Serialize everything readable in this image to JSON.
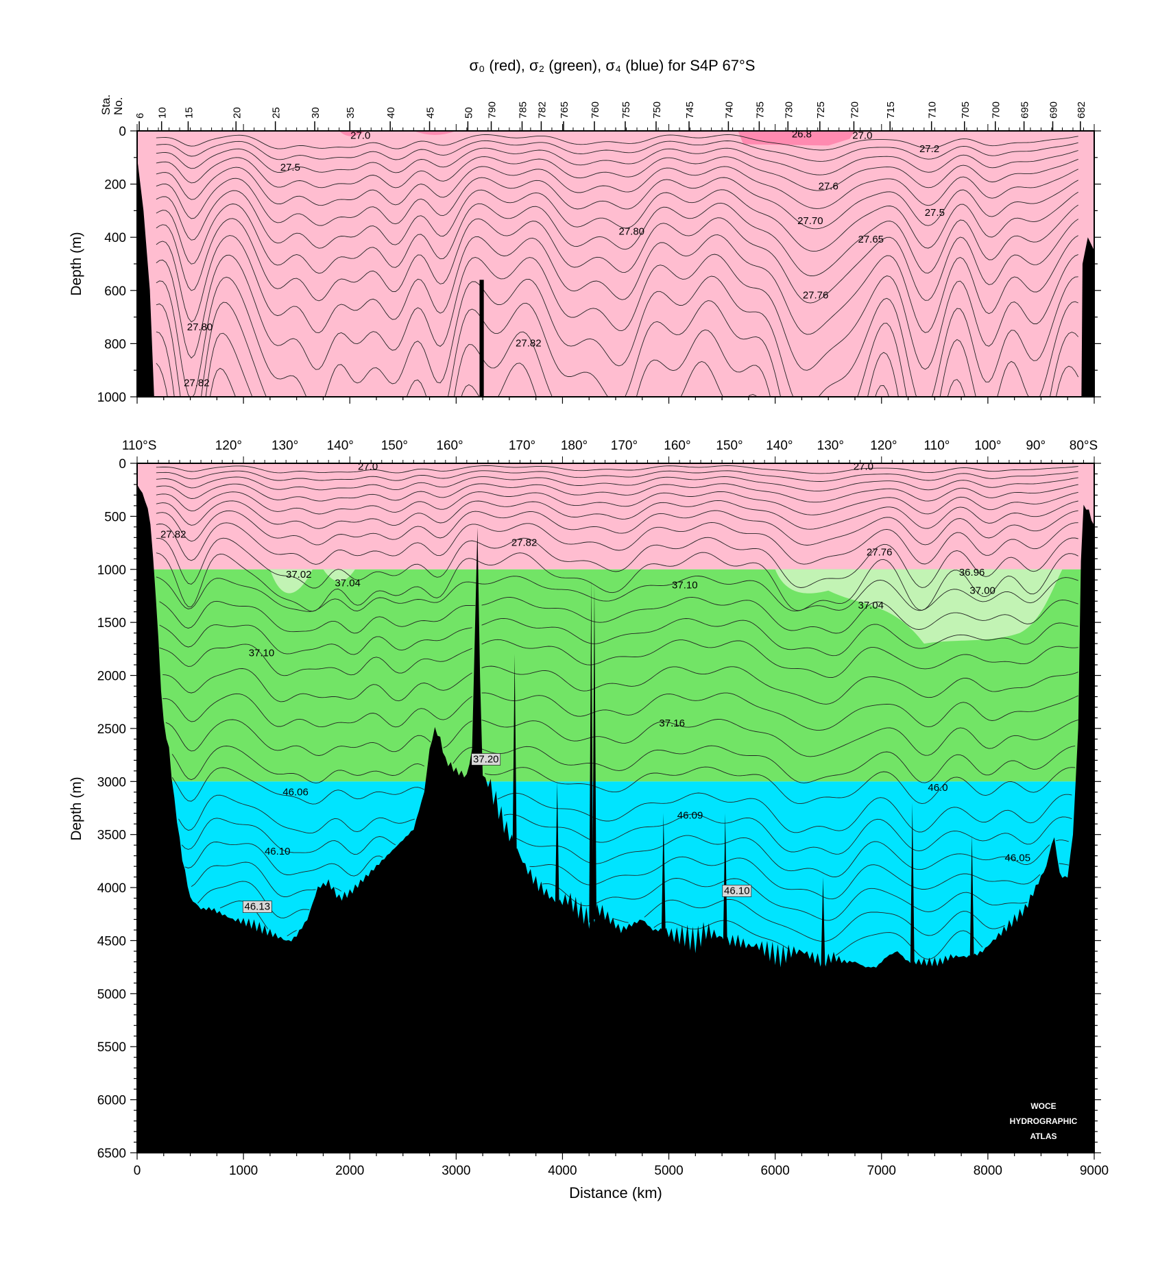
{
  "chart_data": [
    {
      "id": "upper",
      "type": "heatmap",
      "title": "σ₀ (red), σ₂ (green), σ₄ (blue) for S4P 67°S",
      "ylabel": "Depth (m)",
      "xlim": [
        0,
        9000
      ],
      "ylim": [
        0,
        1000
      ],
      "y_ticks": [
        0,
        200,
        400,
        600,
        800,
        1000
      ],
      "station_axis_label_line1": "Sta.",
      "station_axis_label_line2": "No.",
      "stations": [
        {
          "label": "6",
          "x": 20
        },
        {
          "label": "10",
          "x": 230
        },
        {
          "label": "15",
          "x": 480
        },
        {
          "label": "20",
          "x": 930
        },
        {
          "label": "25",
          "x": 1300
        },
        {
          "label": "30",
          "x": 1670
        },
        {
          "label": "35",
          "x": 2000
        },
        {
          "label": "40",
          "x": 2380
        },
        {
          "label": "45",
          "x": 2750
        },
        {
          "label": "50",
          "x": 3110
        },
        {
          "label": "790",
          "x": 3330
        },
        {
          "label": "785",
          "x": 3620
        },
        {
          "label": "782",
          "x": 3800
        },
        {
          "label": "765",
          "x": 4010
        },
        {
          "label": "760",
          "x": 4300
        },
        {
          "label": "755",
          "x": 4590
        },
        {
          "label": "750",
          "x": 4880
        },
        {
          "label": "745",
          "x": 5190
        },
        {
          "label": "740",
          "x": 5560
        },
        {
          "label": "735",
          "x": 5850
        },
        {
          "label": "730",
          "x": 6120
        },
        {
          "label": "725",
          "x": 6420
        },
        {
          "label": "720",
          "x": 6740
        },
        {
          "label": "715",
          "x": 7080
        },
        {
          "label": "710",
          "x": 7470
        },
        {
          "label": "705",
          "x": 7780
        },
        {
          "label": "700",
          "x": 8070
        },
        {
          "label": "695",
          "x": 8340
        },
        {
          "label": "690",
          "x": 8610
        },
        {
          "label": "682",
          "x": 8870
        }
      ],
      "layer_colors": {
        "sigma0": "#ffbdd0",
        "sigma0_light": "#ff8ab0"
      },
      "contour_labels": [
        {
          "text": "27.0",
          "x": 2100,
          "y": 30
        },
        {
          "text": "26.8",
          "x": 6250,
          "y": 25
        },
        {
          "text": "27.0",
          "x": 6820,
          "y": 30
        },
        {
          "text": "27.2",
          "x": 7450,
          "y": 80
        },
        {
          "text": "27.5",
          "x": 1440,
          "y": 150
        },
        {
          "text": "27.6",
          "x": 6500,
          "y": 220
        },
        {
          "text": "27.5",
          "x": 7500,
          "y": 320
        },
        {
          "text": "27.70",
          "x": 6330,
          "y": 350
        },
        {
          "text": "27.65",
          "x": 6900,
          "y": 420
        },
        {
          "text": "27.80",
          "x": 4650,
          "y": 390
        },
        {
          "text": "27.76",
          "x": 6380,
          "y": 630
        },
        {
          "text": "27.80",
          "x": 590,
          "y": 750
        },
        {
          "text": "27.82",
          "x": 3680,
          "y": 810
        },
        {
          "text": "27.82",
          "x": 560,
          "y": 960
        }
      ]
    },
    {
      "id": "lower",
      "type": "heatmap",
      "xlabel": "Distance (km)",
      "ylabel": "Depth (m)",
      "xlim": [
        0,
        9000
      ],
      "ylim": [
        0,
        6500
      ],
      "x_ticks": [
        0,
        1000,
        2000,
        3000,
        4000,
        5000,
        6000,
        7000,
        8000,
        9000
      ],
      "y_ticks": [
        0,
        500,
        1000,
        1500,
        2000,
        2500,
        3000,
        3500,
        4000,
        4500,
        5000,
        5500,
        6000,
        6500
      ],
      "longitude_labels": [
        {
          "label": "110°S",
          "x": 20
        },
        {
          "label": "120°",
          "x": 860
        },
        {
          "label": "130°",
          "x": 1390
        },
        {
          "label": "140°",
          "x": 1910
        },
        {
          "label": "150°",
          "x": 2420
        },
        {
          "label": "160°",
          "x": 2940
        },
        {
          "label": "170°",
          "x": 3620
        },
        {
          "label": "180°",
          "x": 4110
        },
        {
          "label": "170°",
          "x": 4580
        },
        {
          "label": "160°",
          "x": 5080
        },
        {
          "label": "150°",
          "x": 5570
        },
        {
          "label": "140°",
          "x": 6040
        },
        {
          "label": "130°",
          "x": 6520
        },
        {
          "label": "120°",
          "x": 7020
        },
        {
          "label": "110°",
          "x": 7520
        },
        {
          "label": "100°",
          "x": 8000
        },
        {
          "label": "90°",
          "x": 8450
        },
        {
          "label": "80°S",
          "x": 8900
        }
      ],
      "layers": [
        {
          "name": "σ0",
          "from": 0,
          "to": 1000,
          "color": "#ffbdd0"
        },
        {
          "name": "σ2",
          "from": 1000,
          "to": 3000,
          "color": "#72e466"
        },
        {
          "name": "σ4",
          "from": 3000,
          "to": 6500,
          "color": "#00e4ff"
        }
      ],
      "layer_colors_extra": {
        "sigma2_light": "#c2f3b4",
        "land": "#000000"
      },
      "bathymetry": {
        "x": [
          0,
          60,
          120,
          180,
          240,
          300,
          340,
          420,
          500,
          600,
          700,
          800,
          900,
          1000,
          1100,
          1200,
          1300,
          1400,
          1450,
          1500,
          1600,
          1700,
          1800,
          1900,
          2000,
          2100,
          2200,
          2300,
          2400,
          2500,
          2600,
          2700,
          2750,
          2800,
          2850,
          2900,
          3000,
          3100,
          3150,
          3200,
          3240,
          3280,
          3320,
          3380,
          3450,
          3550,
          3650,
          3750,
          3850,
          3950,
          4050,
          4150,
          4250,
          4300,
          4350,
          4450,
          4550,
          4650,
          4750,
          4850,
          4950,
          5050,
          5150,
          5250,
          5350,
          5450,
          5550,
          5650,
          5750,
          5850,
          5950,
          6050,
          6150,
          6250,
          6350,
          6450,
          6550,
          6650,
          6750,
          6850,
          6950,
          7050,
          7150,
          7250,
          7350,
          7450,
          7550,
          7650,
          7750,
          7850,
          7950,
          8050,
          8150,
          8250,
          8350,
          8450,
          8550,
          8620,
          8680,
          8750,
          8800,
          8850,
          8880,
          8900,
          8950,
          9000
        ],
        "y": [
          200,
          300,
          500,
          1300,
          2400,
          2700,
          3100,
          3700,
          4100,
          4200,
          4200,
          4250,
          4300,
          4320,
          4350,
          4400,
          4450,
          4500,
          4500,
          4450,
          4300,
          4000,
          3950,
          4100,
          4050,
          3950,
          3850,
          3750,
          3650,
          3550,
          3450,
          3100,
          2700,
          2500,
          2600,
          2800,
          2900,
          2950,
          2700,
          600,
          2900,
          3000,
          3050,
          3200,
          3400,
          3600,
          3800,
          3950,
          4050,
          4150,
          4100,
          4200,
          4300,
          4250,
          4200,
          4300,
          4400,
          4350,
          4300,
          4400,
          4400,
          4450,
          4450,
          4500,
          4400,
          4450,
          4500,
          4500,
          4550,
          4550,
          4600,
          4650,
          4600,
          4600,
          4650,
          4700,
          4650,
          4700,
          4700,
          4750,
          4750,
          4650,
          4600,
          4700,
          4700,
          4700,
          4700,
          4650,
          4650,
          4650,
          4600,
          4500,
          4400,
          4300,
          4200,
          4000,
          3800,
          3500,
          3900,
          3900,
          3500,
          2500,
          600,
          400,
          450,
          600
        ]
      },
      "contour_labels": [
        {
          "text": "27.0",
          "x": 2170,
          "y": 60
        },
        {
          "text": "27.0",
          "x": 6830,
          "y": 60
        },
        {
          "text": "27.82",
          "x": 340,
          "y": 700
        },
        {
          "text": "27.82",
          "x": 3640,
          "y": 780
        },
        {
          "text": "27.76",
          "x": 6980,
          "y": 870
        },
        {
          "text": "37.02",
          "x": 1520,
          "y": 1080
        },
        {
          "text": "37.04",
          "x": 1980,
          "y": 1160
        },
        {
          "text": "37.10",
          "x": 5150,
          "y": 1180
        },
        {
          "text": "36.96",
          "x": 7850,
          "y": 1060
        },
        {
          "text": "37.00",
          "x": 7950,
          "y": 1230
        },
        {
          "text": "37.04",
          "x": 6900,
          "y": 1370
        },
        {
          "text": "37.10",
          "x": 1170,
          "y": 1820
        },
        {
          "text": "37.16",
          "x": 5030,
          "y": 2480
        },
        {
          "text": "37.20",
          "x": 3280,
          "y": 2820
        },
        {
          "text": "46.06",
          "x": 1490,
          "y": 3130
        },
        {
          "text": "46.0",
          "x": 7530,
          "y": 3090
        },
        {
          "text": "46.09",
          "x": 5200,
          "y": 3350
        },
        {
          "text": "46.10",
          "x": 1320,
          "y": 3690
        },
        {
          "text": "46.05",
          "x": 8280,
          "y": 3750
        },
        {
          "text": "46.13",
          "x": 1130,
          "y": 4210
        },
        {
          "text": "46.10",
          "x": 5640,
          "y": 4060
        }
      ]
    }
  ],
  "watermark": [
    "WOCE",
    "HYDROGRAPHIC",
    "ATLAS"
  ]
}
